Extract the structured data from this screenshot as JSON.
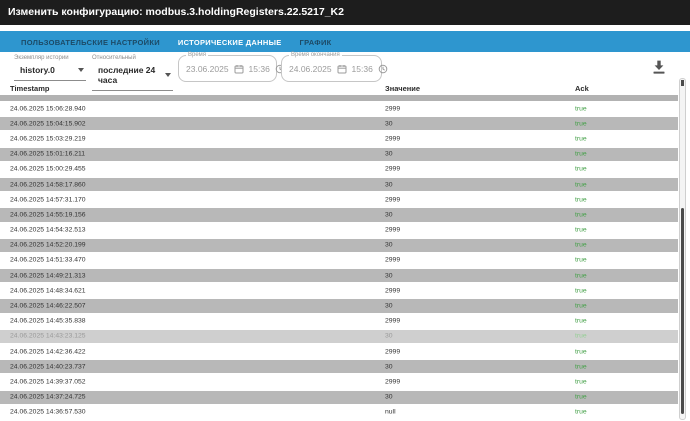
{
  "header": {
    "title": "Изменить конфигурацию: modbus.3.holdingRegisters.22.5217_K2"
  },
  "tabs": [
    {
      "id": "user-settings",
      "label": "ПОЛЬЗОВАТЕЛЬСКИЕ НАСТРОЙКИ",
      "active": false
    },
    {
      "id": "historical-data",
      "label": "ИСТОРИЧЕСКИЕ ДАННЫЕ",
      "active": true
    },
    {
      "id": "graph",
      "label": "ГРАФИК",
      "active": false
    }
  ],
  "filters": {
    "history_instance": {
      "label": "Экземпляр истории",
      "value": "history.0"
    },
    "relative": {
      "label": "Относительный",
      "value": "последние 24 часа"
    },
    "time_start": {
      "label": "Время",
      "date": "23.06.2025",
      "time": "15:36"
    },
    "time_end": {
      "label": "Время окончания",
      "date": "24.06.2025",
      "time": "15:36"
    }
  },
  "toolbar": {
    "download_icon": "file-download"
  },
  "table": {
    "columns": [
      "Timestamp",
      "Значение",
      "Ack"
    ],
    "rows": [
      {
        "timestamp": "24.06.2025 15:06:28.940",
        "value": "2999",
        "ack": "true"
      },
      {
        "timestamp": "24.06.2025 15:04:15.902",
        "value": "30",
        "ack": "true"
      },
      {
        "timestamp": "24.06.2025 15:03:29.219",
        "value": "2999",
        "ack": "true"
      },
      {
        "timestamp": "24.06.2025 15:01:16.211",
        "value": "30",
        "ack": "true"
      },
      {
        "timestamp": "24.06.2025 15:00:29.455",
        "value": "2999",
        "ack": "true"
      },
      {
        "timestamp": "24.06.2025 14:58:17.860",
        "value": "30",
        "ack": "true"
      },
      {
        "timestamp": "24.06.2025 14:57:31.170",
        "value": "2999",
        "ack": "true"
      },
      {
        "timestamp": "24.06.2025 14:55:19.156",
        "value": "30",
        "ack": "true"
      },
      {
        "timestamp": "24.06.2025 14:54:32.513",
        "value": "2999",
        "ack": "true"
      },
      {
        "timestamp": "24.06.2025 14:52:20.199",
        "value": "30",
        "ack": "true"
      },
      {
        "timestamp": "24.06.2025 14:51:33.470",
        "value": "2999",
        "ack": "true"
      },
      {
        "timestamp": "24.06.2025 14:49:21.313",
        "value": "30",
        "ack": "true"
      },
      {
        "timestamp": "24.06.2025 14:48:34.621",
        "value": "2999",
        "ack": "true"
      },
      {
        "timestamp": "24.06.2025 14:46:22.507",
        "value": "30",
        "ack": "true"
      },
      {
        "timestamp": "24.06.2025 14:45:35.838",
        "value": "2999",
        "ack": "true"
      },
      {
        "timestamp": "24.06.2025 14:43:23.125",
        "value": "30",
        "ack": "true",
        "faded": true
      },
      {
        "timestamp": "24.06.2025 14:42:36.422",
        "value": "2999",
        "ack": "true"
      },
      {
        "timestamp": "24.06.2025 14:40:23.737",
        "value": "30",
        "ack": "true"
      },
      {
        "timestamp": "24.06.2025 14:39:37.052",
        "value": "2999",
        "ack": "true"
      },
      {
        "timestamp": "24.06.2025 14:37:24.725",
        "value": "30",
        "ack": "true"
      },
      {
        "timestamp": "24.06.2025 14:36:57.530",
        "value": "null",
        "ack": "true"
      }
    ]
  },
  "colors": {
    "accent_blue": "#2e96cf",
    "tab_underline": "#1a557a",
    "header_dark": "#1d1d1d",
    "row_gray": "#b8b8b8",
    "ack_green": "#43a047"
  }
}
